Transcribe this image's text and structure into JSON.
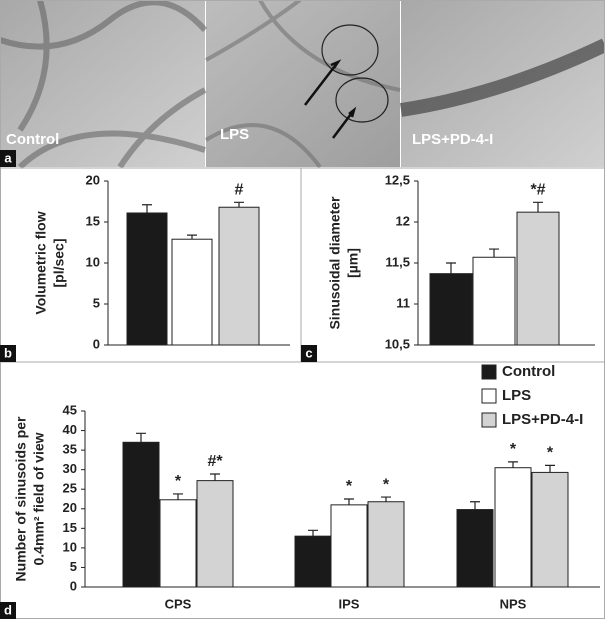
{
  "panels": {
    "a": {
      "letter": "a",
      "labels": [
        "Control",
        "LPS",
        "LPS+PD-4-I"
      ]
    },
    "b": {
      "letter": "b"
    },
    "c": {
      "letter": "c"
    },
    "d": {
      "letter": "d"
    }
  },
  "chart_data": [
    {
      "type": "bar",
      "ylabel": [
        "Volumetric flow",
        "[pl/sec]"
      ],
      "values": [
        16.1,
        12.9,
        16.8
      ],
      "errors": [
        1.0,
        0.5,
        0.6
      ],
      "colors": [
        "#1a1a1a",
        "#ffffff",
        "#d3d3d3"
      ],
      "annotations": [
        null,
        null,
        "#"
      ],
      "ylim": [
        0,
        20
      ],
      "yticks": [
        0,
        5,
        10,
        15,
        20
      ]
    },
    {
      "type": "bar",
      "ylabel": [
        "Sinusoidal diameter",
        "[µm]"
      ],
      "values": [
        11.37,
        11.57,
        12.12
      ],
      "errors": [
        0.13,
        0.1,
        0.12
      ],
      "colors": [
        "#1a1a1a",
        "#ffffff",
        "#d3d3d3"
      ],
      "annotations": [
        null,
        null,
        "*#"
      ],
      "ylim": [
        10.5,
        12.5
      ],
      "yticks": [
        {
          "value": 10.5,
          "label": "10,5"
        },
        11,
        {
          "value": 11.5,
          "label": "11,5"
        },
        12,
        {
          "value": 12.5,
          "label": "12,5"
        }
      ]
    },
    {
      "type": "grouped-bar",
      "ylabel": [
        "Number of sinusoids per",
        "0.4mm² field of view"
      ],
      "categories": [
        "CPS",
        "IPS",
        "NPS"
      ],
      "series": [
        {
          "name": "Control",
          "color": "#1a1a1a",
          "values": [
            37,
            13,
            19.8
          ],
          "errors": [
            2.3,
            1.5,
            2
          ],
          "annotations": [
            null,
            null,
            null
          ]
        },
        {
          "name": "LPS",
          "color": "#ffffff",
          "values": [
            22.3,
            21,
            30.5
          ],
          "errors": [
            1.5,
            1.5,
            1.5
          ],
          "annotations": [
            "*",
            "*",
            "*"
          ]
        },
        {
          "name": "LPS+PD-4-I",
          "color": "#d3d3d3",
          "values": [
            27.2,
            21.8,
            29.3
          ],
          "errors": [
            1.7,
            1.2,
            1.8
          ],
          "annotations": [
            "#*",
            "*",
            "*"
          ]
        }
      ],
      "ylim": [
        0,
        45
      ],
      "yticks": [
        0,
        5,
        10,
        15,
        20,
        25,
        30,
        35,
        40,
        45
      ]
    }
  ]
}
